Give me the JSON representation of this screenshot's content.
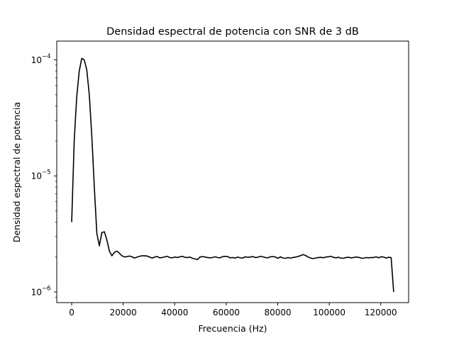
{
  "chart_data": {
    "type": "line",
    "title": "Densidad espectral de potencia con SNR de 3 dB",
    "xlabel": "Frecuencia (Hz)",
    "ylabel": "Densidad espectral de potencia",
    "y_scale": "log",
    "xlim": [
      -5800,
      130800
    ],
    "ylim": [
      8.1e-07,
      0.000145
    ],
    "grid": false,
    "legend": "none",
    "line_color": "#000000",
    "x_ticks": [
      {
        "value": 0,
        "label": "0"
      },
      {
        "value": 20000,
        "label": "20000"
      },
      {
        "value": 40000,
        "label": "40000"
      },
      {
        "value": 60000,
        "label": "60000"
      },
      {
        "value": 80000,
        "label": "80000"
      },
      {
        "value": 100000,
        "label": "100000"
      },
      {
        "value": 120000,
        "label": "120000"
      }
    ],
    "y_ticks": [
      {
        "value": 1e-06,
        "base": "10",
        "exp": "−6"
      },
      {
        "value": 1e-05,
        "base": "10",
        "exp": "−5"
      },
      {
        "value": 0.0001,
        "base": "10",
        "exp": "−4"
      }
    ],
    "series": [
      {
        "x": [
          0,
          976,
          1953,
          2930,
          3906,
          4883,
          5859,
          6836,
          7812,
          8789,
          9766,
          10742,
          11719,
          12695,
          13672,
          14648,
          15625,
          16602,
          17578,
          18555,
          19531,
          20508,
          21484,
          22461,
          23438,
          24414,
          25391,
          26367,
          27344,
          28320,
          29297,
          30273,
          31250,
          32227,
          33203,
          34180,
          35156,
          36133,
          37109,
          38086,
          39062,
          40039,
          41016,
          41992,
          42969,
          43945,
          44922,
          45898,
          46875,
          47852,
          48828,
          49805,
          50781,
          51758,
          52734,
          53711,
          54688,
          55664,
          56641,
          57617,
          58594,
          59570,
          60547,
          61523,
          62500,
          63477,
          64453,
          65430,
          66406,
          67383,
          68359,
          69336,
          70312,
          71289,
          72266,
          73242,
          74219,
          75195,
          76172,
          77148,
          78125,
          79102,
          80078,
          81055,
          82031,
          83008,
          83984,
          84961,
          85938,
          86914,
          87891,
          88867,
          89844,
          90820,
          91797,
          92773,
          93750,
          94727,
          95703,
          96680,
          97656,
          98633,
          99609,
          100586,
          101562,
          102539,
          103516,
          104492,
          105469,
          106445,
          107422,
          108398,
          109375,
          110352,
          111328,
          112305,
          113281,
          114258,
          115234,
          116211,
          117188,
          118164,
          119141,
          120117,
          121094,
          122070,
          123047,
          124023,
          125000
        ],
        "y": [
          4e-06,
          2e-05,
          4.8e-05,
          8e-05,
          0.000103,
          0.0001,
          8.2e-05,
          5e-05,
          2.2e-05,
          8e-06,
          3.2e-06,
          2.5e-06,
          3.25e-06,
          3.3e-06,
          2.8e-06,
          2.25e-06,
          2.05e-06,
          2.2e-06,
          2.25e-06,
          2.15e-06,
          2.05e-06,
          2e-06,
          2.02e-06,
          2.04e-06,
          2.01e-06,
          1.96e-06,
          2e-06,
          2.03e-06,
          2.05e-06,
          2.05e-06,
          2.04e-06,
          2e-06,
          1.96e-06,
          2e-06,
          2.02e-06,
          1.97e-06,
          1.98e-06,
          2.01e-06,
          2.03e-06,
          1.98e-06,
          1.97e-06,
          2e-06,
          1.98e-06,
          2.01e-06,
          2.03e-06,
          1.99e-06,
          1.98e-06,
          2e-06,
          1.95e-06,
          1.93e-06,
          1.9e-06,
          2e-06,
          2.02e-06,
          2e-06,
          1.98e-06,
          1.97e-06,
          1.98e-06,
          2.01e-06,
          1.98e-06,
          1.97e-06,
          2.02e-06,
          2.03e-06,
          2.02e-06,
          1.97e-06,
          1.98e-06,
          1.96e-06,
          2e-06,
          1.97e-06,
          1.96e-06,
          2.01e-06,
          1.99e-06,
          2e-06,
          2.02e-06,
          1.98e-06,
          1.99e-06,
          2.03e-06,
          2.01e-06,
          1.98e-06,
          1.97e-06,
          2.01e-06,
          2.02e-06,
          2e-06,
          1.95e-06,
          2.01e-06,
          1.96e-06,
          1.95e-06,
          1.98e-06,
          1.96e-06,
          1.98e-06,
          2e-06,
          2.02e-06,
          2.06e-06,
          2.1e-06,
          2.06e-06,
          2e-06,
          1.96e-06,
          1.94e-06,
          1.96e-06,
          1.98e-06,
          1.99e-06,
          1.97e-06,
          2e-06,
          2.01e-06,
          2.03e-06,
          1.99e-06,
          1.97e-06,
          1.99e-06,
          1.96e-06,
          1.95e-06,
          1.98e-06,
          1.99e-06,
          1.97e-06,
          1.98e-06,
          2e-06,
          1.99e-06,
          1.96e-06,
          1.95e-06,
          1.98e-06,
          1.97e-06,
          1.98e-06,
          1.98e-06,
          2.01e-06,
          1.97e-06,
          2.01e-06,
          2e-06,
          1.96e-06,
          1.99e-06,
          1.98e-06,
          1e-06
        ]
      }
    ]
  }
}
